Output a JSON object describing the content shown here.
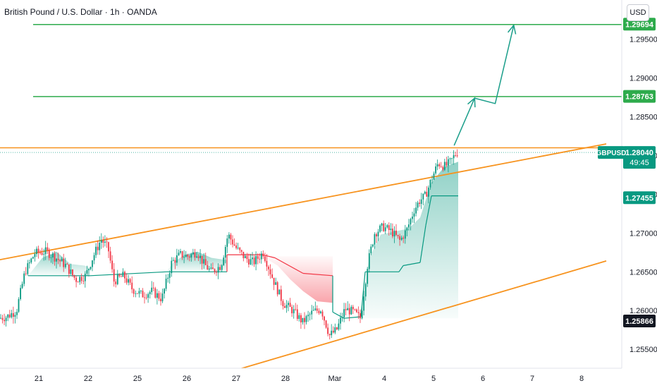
{
  "header": {
    "title": "British Pound / U.S. Dollar · 1h · OANDA",
    "currency": "USD"
  },
  "colors": {
    "up": "#089981",
    "down": "#f23645",
    "channel": "#f7931e",
    "target": "#2eab4c",
    "arrow": "#1a9e8a",
    "axis_text": "#131722"
  },
  "chart_data": {
    "type": "candlestick",
    "symbol": "GBPUSD",
    "timeframe": "1h",
    "x_ticks": [
      "21",
      "22",
      "25",
      "26",
      "27",
      "28",
      "Mar",
      "4",
      "5",
      "6",
      "7",
      "8"
    ],
    "y_ticks": [
      "1.25500",
      "1.26000",
      "1.26500",
      "1.27000",
      "1.27500",
      "1.28000",
      "1.28500",
      "1.29000",
      "1.29500"
    ],
    "ylim": [
      1.251,
      1.3
    ],
    "last_price": {
      "symbol": "GBPUSD",
      "value": "1.28040",
      "countdown": "49:45"
    },
    "price_labels": [
      {
        "value": "1.28763",
        "kind": "target"
      },
      {
        "value": "1.27455",
        "kind": "stop"
      },
      {
        "value": "1.25866",
        "kind": "level"
      },
      {
        "value": "1.29694",
        "kind": "target"
      }
    ],
    "horizontal_lines": [
      {
        "price": 1.2969,
        "kind": "target"
      },
      {
        "price": 1.2876,
        "kind": "target"
      },
      {
        "price": 1.281,
        "kind": "resistance"
      }
    ],
    "channel_lines": [
      {
        "from": [
          "Feb 20 00:00",
          1.2663
        ],
        "to": [
          "Mar 8 12:00",
          1.2815
        ],
        "kind": "upper"
      },
      {
        "from": [
          "Feb 26 12:00",
          1.2514
        ],
        "to": [
          "Mar 8 12:00",
          1.2664
        ],
        "kind": "lower"
      }
    ],
    "projection_arrow": [
      [
        "Mar 5 10:00",
        1.2813
      ],
      [
        "Mar 5 20:00",
        1.2874
      ],
      [
        "Mar 6 06:00",
        1.2867
      ],
      [
        "Mar 6 15:00",
        1.2968
      ]
    ],
    "anchors": [
      [
        0,
        1.259
      ],
      [
        12,
        1.2592
      ],
      [
        26,
        1.26
      ],
      [
        38,
        1.265
      ],
      [
        52,
        1.2674
      ],
      [
        68,
        1.2676
      ],
      [
        82,
        1.2668
      ],
      [
        96,
        1.2658
      ],
      [
        110,
        1.264
      ],
      [
        124,
        1.2645
      ],
      [
        134,
        1.2668
      ],
      [
        146,
        1.2692
      ],
      [
        156,
        1.268
      ],
      [
        164,
        1.2638
      ],
      [
        178,
        1.2645
      ],
      [
        190,
        1.2628
      ],
      [
        204,
        1.262
      ],
      [
        218,
        1.2625
      ],
      [
        232,
        1.2615
      ],
      [
        246,
        1.2662
      ],
      [
        258,
        1.2672
      ],
      [
        270,
        1.267
      ],
      [
        282,
        1.2676
      ],
      [
        292,
        1.266
      ],
      [
        302,
        1.265
      ],
      [
        316,
        1.2658
      ],
      [
        326,
        1.2698
      ],
      [
        338,
        1.268
      ],
      [
        350,
        1.2668
      ],
      [
        362,
        1.2662
      ],
      [
        376,
        1.2675
      ],
      [
        390,
        1.264
      ],
      [
        404,
        1.261
      ],
      [
        418,
        1.26
      ],
      [
        432,
        1.2585
      ],
      [
        446,
        1.2598
      ],
      [
        458,
        1.2602
      ],
      [
        470,
        1.2568
      ],
      [
        480,
        1.2575
      ],
      [
        492,
        1.2602
      ],
      [
        504,
        1.2598
      ],
      [
        514,
        1.259
      ],
      [
        524,
        1.266
      ],
      [
        534,
        1.27
      ],
      [
        546,
        1.2708
      ],
      [
        558,
        1.2702
      ],
      [
        570,
        1.269
      ],
      [
        580,
        1.2705
      ],
      [
        590,
        1.273
      ],
      [
        598,
        1.2742
      ],
      [
        606,
        1.2748
      ],
      [
        614,
        1.2768
      ],
      [
        624,
        1.279
      ],
      [
        634,
        1.2786
      ],
      [
        642,
        1.2792
      ],
      [
        650,
        1.2804
      ]
    ],
    "indicator_bands": [
      {
        "color": "up",
        "base": 1.2645,
        "pts": [
          [
            40,
            1.2645
          ],
          [
            60,
            1.2668
          ],
          [
            80,
            1.2676
          ],
          [
            100,
            1.266
          ],
          [
            120,
            1.2658
          ],
          [
            128,
            1.2655
          ]
        ]
      },
      {
        "color": "up",
        "base": 1.265,
        "pts": [
          [
            236,
            1.265
          ],
          [
            246,
            1.2662
          ],
          [
            262,
            1.2672
          ],
          [
            280,
            1.2676
          ],
          [
            300,
            1.2668
          ],
          [
            322,
            1.2665
          ]
        ]
      },
      {
        "color": "down",
        "base": 1.267,
        "pts": [
          [
            372,
            1.267
          ],
          [
            394,
            1.2658
          ],
          [
            412,
            1.264
          ],
          [
            430,
            1.2625
          ],
          [
            450,
            1.2612
          ],
          [
            472,
            1.261
          ]
        ]
      },
      {
        "color": "up",
        "base": 1.259,
        "pts": [
          [
            510,
            1.259
          ],
          [
            524,
            1.2668
          ],
          [
            540,
            1.2698
          ],
          [
            560,
            1.2702
          ],
          [
            580,
            1.2706
          ],
          [
            596,
            1.272
          ],
          [
            612,
            1.2765
          ],
          [
            630,
            1.2785
          ],
          [
            650,
            1.2792
          ]
        ]
      }
    ],
    "indicator_line": [
      [
        40,
        1.2645
      ],
      [
        128,
        1.2645
      ],
      [
        128,
        1.2645
      ],
      [
        236,
        1.265
      ],
      [
        322,
        1.265
      ],
      [
        322,
        1.2672
      ],
      [
        372,
        1.2672
      ],
      [
        390,
        1.2668
      ],
      [
        430,
        1.2648
      ],
      [
        472,
        1.2645
      ],
      [
        472,
        1.2598
      ],
      [
        488,
        1.259
      ],
      [
        512,
        1.2592
      ],
      [
        518,
        1.265
      ],
      [
        566,
        1.265
      ],
      [
        572,
        1.2658
      ],
      [
        596,
        1.2662
      ],
      [
        604,
        1.271
      ],
      [
        612,
        1.2748
      ],
      [
        650,
        1.2748
      ]
    ]
  }
}
